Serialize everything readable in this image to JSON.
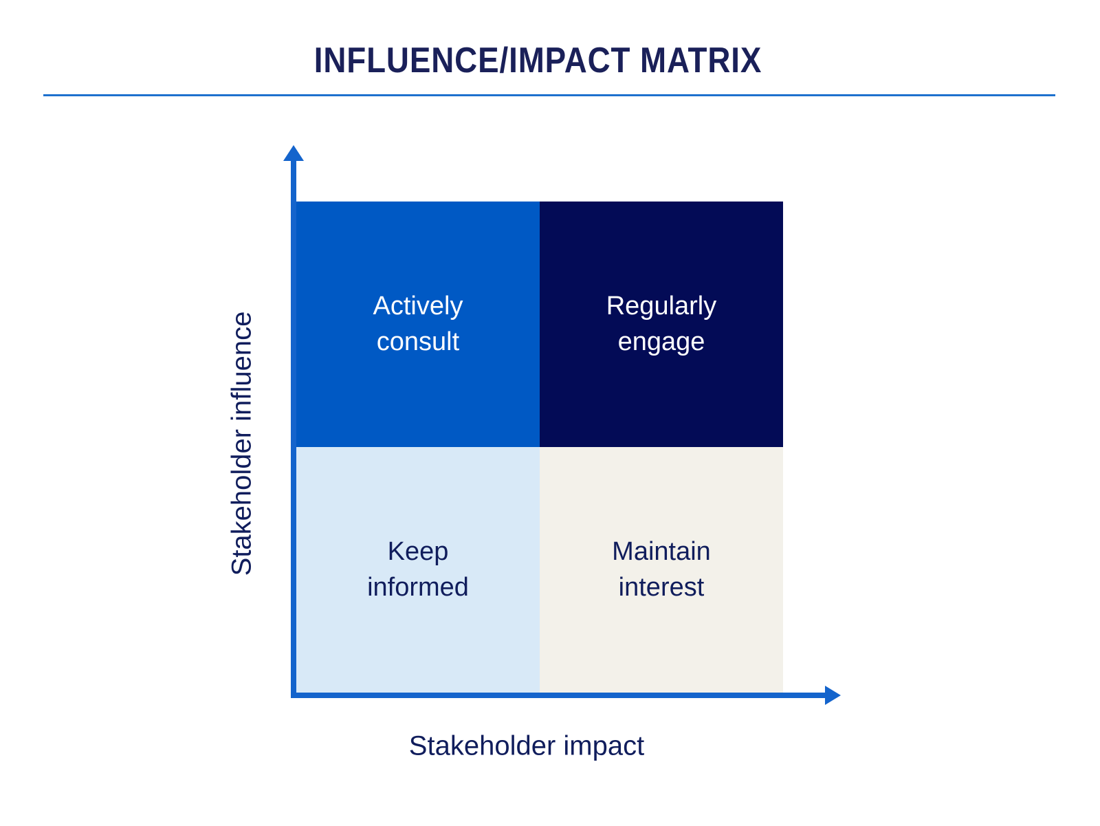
{
  "title": "INFLUENCE/IMPACT MATRIX",
  "y_axis": {
    "label": "Stakeholder influence"
  },
  "x_axis": {
    "label": "Stakeholder impact"
  },
  "quadrants": {
    "top_left": {
      "position": "high influence / low impact",
      "lines": [
        "Actively",
        "consult"
      ]
    },
    "top_right": {
      "position": "high influence / high impact",
      "lines": [
        "Regularly",
        "engage"
      ]
    },
    "bottom_left": {
      "position": "low influence / low impact",
      "lines": [
        "Keep",
        "informed"
      ]
    },
    "bottom_right": {
      "position": "low influence / high impact",
      "lines": [
        "Maintain",
        "interest"
      ]
    }
  },
  "colors": {
    "quad-top-left": "#0059C4",
    "quad-top-right": "#030B56",
    "quad-bottom-left": "#D8E9F7",
    "quad-bottom-right": "#F3F1EA",
    "quad-light-text": "#FFFFFF",
    "axis": "#1464CC",
    "divider": "#1E71CE",
    "title-text": "#1A2059",
    "label-text": "#101D5C"
  }
}
